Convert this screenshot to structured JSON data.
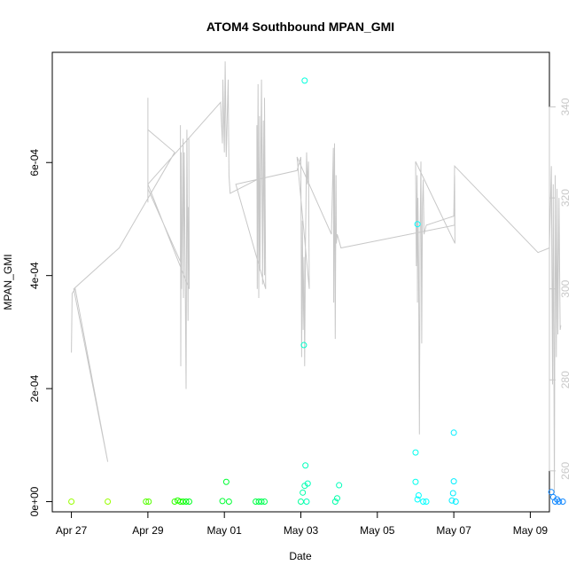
{
  "chart_data": {
    "type": "scatter",
    "title": "ATOM4 Southbound MPAN_GMI",
    "xlabel": "Date",
    "ylabel": "MPAN_GMI",
    "x_unit": "days since Apr 27",
    "xlim": [
      -0.5,
      12.5
    ],
    "ylim": [
      -1.8e-05,
      0.000795
    ],
    "x_ticks": [
      {
        "value": 0,
        "label": "Apr 27"
      },
      {
        "value": 2,
        "label": "Apr 29"
      },
      {
        "value": 4,
        "label": "May 01"
      },
      {
        "value": 6,
        "label": "May 03"
      },
      {
        "value": 8,
        "label": "May 05"
      },
      {
        "value": 10,
        "label": "May 07"
      },
      {
        "value": 12,
        "label": "May 09"
      }
    ],
    "y_ticks": [
      {
        "value": 0,
        "label": "0e+00"
      },
      {
        "value": 0.0002,
        "label": "2e-04"
      },
      {
        "value": 0.0004,
        "label": "4e-04"
      },
      {
        "value": 0.0006,
        "label": "6e-04"
      }
    ],
    "y2_range": [
      251,
      352
    ],
    "y2_ticks": [
      {
        "value": 260,
        "label": "260"
      },
      {
        "value": 280,
        "label": "280"
      },
      {
        "value": 300,
        "label": "300"
      },
      {
        "value": 320,
        "label": "320"
      },
      {
        "value": 340,
        "label": "340"
      }
    ],
    "series": [
      {
        "name": "MPAN_GMI",
        "marker": "open-circle",
        "points": [
          {
            "x": 0.0,
            "y": 0.0,
            "color": "#99ff00"
          },
          {
            "x": 0.95,
            "y": 0.0,
            "color": "#99ff00"
          },
          {
            "x": 1.95,
            "y": 0.0,
            "color": "#55ff00"
          },
          {
            "x": 2.02,
            "y": 0.0,
            "color": "#55ff00"
          },
          {
            "x": 2.7,
            "y": 0.0,
            "color": "#33ff00"
          },
          {
            "x": 2.78,
            "y": 2e-06,
            "color": "#22ff00"
          },
          {
            "x": 2.85,
            "y": 0.0,
            "color": "#22ff00"
          },
          {
            "x": 2.92,
            "y": 0.0,
            "color": "#11ff00"
          },
          {
            "x": 3.0,
            "y": 0.0,
            "color": "#00ff11"
          },
          {
            "x": 3.08,
            "y": 0.0,
            "color": "#00ff22"
          },
          {
            "x": 3.95,
            "y": 1e-06,
            "color": "#00ff33"
          },
          {
            "x": 4.05,
            "y": 3.5e-05,
            "color": "#00ff33"
          },
          {
            "x": 4.12,
            "y": 0.0,
            "color": "#00ff33"
          },
          {
            "x": 4.82,
            "y": 0.0,
            "color": "#00ff44"
          },
          {
            "x": 4.9,
            "y": 0.0,
            "color": "#00ff44"
          },
          {
            "x": 4.97,
            "y": 0.0,
            "color": "#00ff55"
          },
          {
            "x": 5.05,
            "y": 0.0,
            "color": "#00ff55"
          },
          {
            "x": 6.0,
            "y": 0.0,
            "color": "#00ff99"
          },
          {
            "x": 6.05,
            "y": 1.6e-05,
            "color": "#00ffaa"
          },
          {
            "x": 6.1,
            "y": 2.8e-05,
            "color": "#00ffaa"
          },
          {
            "x": 6.12,
            "y": 6.4e-05,
            "color": "#00ffbb"
          },
          {
            "x": 6.18,
            "y": 3.2e-05,
            "color": "#00ffbb"
          },
          {
            "x": 6.08,
            "y": 0.000277,
            "color": "#00ffcc"
          },
          {
            "x": 6.1,
            "y": 0.000745,
            "color": "#00ffdd"
          },
          {
            "x": 6.15,
            "y": 0.0,
            "color": "#00ffbb"
          },
          {
            "x": 6.9,
            "y": 0.0,
            "color": "#00ffaa"
          },
          {
            "x": 6.95,
            "y": 6e-06,
            "color": "#00ffaa"
          },
          {
            "x": 7.0,
            "y": 2.9e-05,
            "color": "#00ffbb"
          },
          {
            "x": 9.0,
            "y": 3.5e-05,
            "color": "#00ffee"
          },
          {
            "x": 9.0,
            "y": 8.7e-05,
            "color": "#00ffee"
          },
          {
            "x": 9.05,
            "y": 4e-06,
            "color": "#00ffff"
          },
          {
            "x": 9.08,
            "y": 1.1e-05,
            "color": "#00ffff"
          },
          {
            "x": 9.05,
            "y": 0.000491,
            "color": "#00ffff"
          },
          {
            "x": 9.2,
            "y": 0.0,
            "color": "#00ffff"
          },
          {
            "x": 9.28,
            "y": 0.0,
            "color": "#00ffff"
          },
          {
            "x": 9.95,
            "y": 2e-06,
            "color": "#00eeff"
          },
          {
            "x": 9.98,
            "y": 1.5e-05,
            "color": "#00eeff"
          },
          {
            "x": 10.0,
            "y": 3.6e-05,
            "color": "#00eeff"
          },
          {
            "x": 10.0,
            "y": 0.000122,
            "color": "#00eeff"
          },
          {
            "x": 10.05,
            "y": 0.0,
            "color": "#00eeff"
          },
          {
            "x": 12.55,
            "y": 1.7e-05,
            "color": "#1188ff"
          },
          {
            "x": 12.6,
            "y": 8e-06,
            "color": "#1188ff"
          },
          {
            "x": 12.65,
            "y": 0.0,
            "color": "#1188ff"
          },
          {
            "x": 12.7,
            "y": 4e-06,
            "color": "#1188ff"
          },
          {
            "x": 12.75,
            "y": 0.0,
            "color": "#1188ff"
          },
          {
            "x": 12.85,
            "y": 0.0,
            "color": "#1188ff"
          }
        ]
      },
      {
        "name": "secondary-axis-line",
        "color": "#c8c8c8",
        "axis": "right",
        "points": [
          {
            "x": 0.0,
            "y": 286
          },
          {
            "x": 0.02,
            "y": 299
          },
          {
            "x": 0.1,
            "y": 300
          },
          {
            "x": 0.95,
            "y": 262
          },
          {
            "x": 0.06,
            "y": 300
          },
          {
            "x": 1.25,
            "y": 309
          },
          {
            "x": 2.7,
            "y": 330
          },
          {
            "x": 2.0,
            "y": 335
          },
          {
            "x": 2.0,
            "y": 325
          },
          {
            "x": 2.0,
            "y": 342
          },
          {
            "x": 2.0,
            "y": 319
          },
          {
            "x": 2.0,
            "y": 322
          },
          {
            "x": 2.85,
            "y": 306
          },
          {
            "x": 2.85,
            "y": 336
          },
          {
            "x": 2.86,
            "y": 283
          },
          {
            "x": 2.87,
            "y": 330
          },
          {
            "x": 2.88,
            "y": 300
          },
          {
            "x": 2.92,
            "y": 333
          },
          {
            "x": 2.93,
            "y": 298
          },
          {
            "x": 2.95,
            "y": 330
          },
          {
            "x": 3.0,
            "y": 278
          },
          {
            "x": 3.02,
            "y": 335
          },
          {
            "x": 3.05,
            "y": 293
          },
          {
            "x": 3.06,
            "y": 318
          },
          {
            "x": 3.08,
            "y": 304
          },
          {
            "x": 3.07,
            "y": 333
          },
          {
            "x": 3.08,
            "y": 300
          },
          {
            "x": 2.0,
            "y": 323
          },
          {
            "x": 3.9,
            "y": 341
          },
          {
            "x": 3.95,
            "y": 332
          },
          {
            "x": 3.96,
            "y": 346
          },
          {
            "x": 4.0,
            "y": 330
          },
          {
            "x": 4.02,
            "y": 350
          },
          {
            "x": 4.05,
            "y": 329
          },
          {
            "x": 4.1,
            "y": 346
          },
          {
            "x": 4.12,
            "y": 325
          },
          {
            "x": 4.15,
            "y": 321
          },
          {
            "x": 4.85,
            "y": 324
          },
          {
            "x": 4.85,
            "y": 336
          },
          {
            "x": 4.86,
            "y": 300
          },
          {
            "x": 4.88,
            "y": 345
          },
          {
            "x": 4.9,
            "y": 298
          },
          {
            "x": 4.92,
            "y": 338
          },
          {
            "x": 4.93,
            "y": 304
          },
          {
            "x": 4.97,
            "y": 346
          },
          {
            "x": 5.0,
            "y": 301
          },
          {
            "x": 5.02,
            "y": 337
          },
          {
            "x": 5.05,
            "y": 303
          },
          {
            "x": 5.05,
            "y": 342
          },
          {
            "x": 5.08,
            "y": 300
          },
          {
            "x": 4.3,
            "y": 323
          },
          {
            "x": 5.9,
            "y": 326
          },
          {
            "x": 6.0,
            "y": 329
          },
          {
            "x": 6.02,
            "y": 285
          },
          {
            "x": 6.04,
            "y": 315
          },
          {
            "x": 6.06,
            "y": 291
          },
          {
            "x": 6.08,
            "y": 307
          },
          {
            "x": 6.1,
            "y": 283
          },
          {
            "x": 6.12,
            "y": 310
          },
          {
            "x": 6.15,
            "y": 330
          },
          {
            "x": 6.17,
            "y": 323
          },
          {
            "x": 6.2,
            "y": 328
          },
          {
            "x": 6.22,
            "y": 300
          },
          {
            "x": 5.9,
            "y": 329
          },
          {
            "x": 6.8,
            "y": 312
          },
          {
            "x": 6.85,
            "y": 331
          },
          {
            "x": 6.86,
            "y": 297
          },
          {
            "x": 6.88,
            "y": 332
          },
          {
            "x": 6.9,
            "y": 289
          },
          {
            "x": 6.92,
            "y": 325
          },
          {
            "x": 6.93,
            "y": 310
          },
          {
            "x": 6.95,
            "y": 312
          },
          {
            "x": 7.05,
            "y": 309
          },
          {
            "x": 10.02,
            "y": 314
          },
          {
            "x": 10.02,
            "y": 325
          },
          {
            "x": 10.03,
            "y": 310
          },
          {
            "x": 9.0,
            "y": 328
          },
          {
            "x": 9.02,
            "y": 305
          },
          {
            "x": 9.04,
            "y": 325
          },
          {
            "x": 9.05,
            "y": 297
          },
          {
            "x": 9.06,
            "y": 320
          },
          {
            "x": 9.08,
            "y": 305
          },
          {
            "x": 9.1,
            "y": 268
          },
          {
            "x": 9.12,
            "y": 312
          },
          {
            "x": 9.14,
            "y": 328
          },
          {
            "x": 9.16,
            "y": 288
          },
          {
            "x": 9.18,
            "y": 318
          },
          {
            "x": 9.2,
            "y": 324
          },
          {
            "x": 9.22,
            "y": 312
          },
          {
            "x": 9.28,
            "y": 314
          },
          {
            "x": 10.0,
            "y": 316
          },
          {
            "x": 10.02,
            "y": 327
          },
          {
            "x": 12.2,
            "y": 308
          },
          {
            "x": 12.5,
            "y": 309
          },
          {
            "x": 12.55,
            "y": 327
          },
          {
            "x": 12.58,
            "y": 279
          },
          {
            "x": 12.6,
            "y": 323
          },
          {
            "x": 12.63,
            "y": 255
          },
          {
            "x": 12.65,
            "y": 325
          },
          {
            "x": 12.68,
            "y": 285
          },
          {
            "x": 12.7,
            "y": 322
          },
          {
            "x": 12.72,
            "y": 290
          },
          {
            "x": 12.75,
            "y": 320
          },
          {
            "x": 12.78,
            "y": 291
          },
          {
            "x": 12.8,
            "y": 292
          }
        ]
      }
    ]
  }
}
